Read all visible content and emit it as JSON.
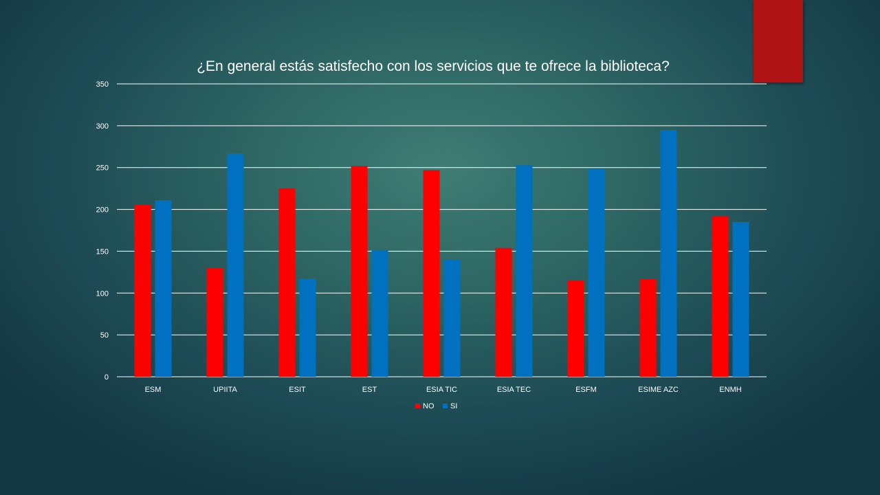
{
  "slide": {
    "accent_color": "#b01414"
  },
  "chart_data": {
    "type": "bar",
    "title": "¿En general estás satisfecho con los servicios que te ofrece la biblioteca?",
    "categories": [
      "ESM",
      "UPIITA",
      "ESIT",
      "EST",
      "ESIA TIC",
      "ESIA TEC",
      "ESFM",
      "ESIME AZC",
      "ENMH"
    ],
    "series": [
      {
        "name": "NO",
        "color": "#ff0000",
        "values": [
          206,
          130,
          225,
          252,
          247,
          154,
          115,
          117,
          192
        ]
      },
      {
        "name": "SI",
        "color": "#0070c0",
        "values": [
          211,
          267,
          117,
          151,
          140,
          253,
          249,
          295,
          185
        ]
      }
    ],
    "ylim": [
      0,
      350
    ],
    "yticks": [
      0,
      50,
      100,
      150,
      200,
      250,
      300,
      350
    ],
    "xlabel": "",
    "ylabel": "",
    "grid": true,
    "legend_position": "bottom"
  }
}
